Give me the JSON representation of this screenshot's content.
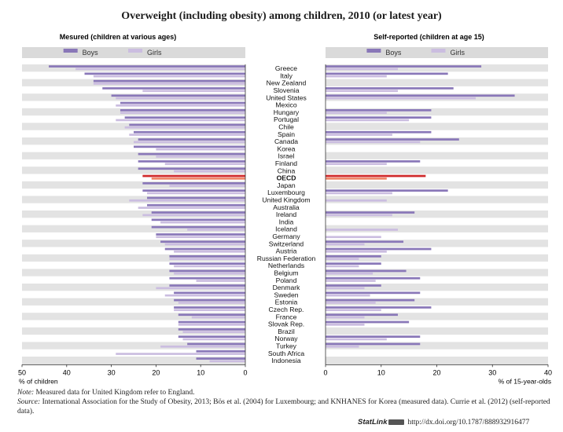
{
  "chart_data": {
    "type": "bar",
    "title": "Overweight (including obesity) among children, 2010 (or latest year)",
    "categories": [
      "Greece",
      "Italy",
      "New Zealand",
      "Slovenia",
      "United States",
      "Mexico",
      "Hungary",
      "Portugal",
      "Chile",
      "Spain",
      "Canada",
      "Korea",
      "Israel",
      "Finland",
      "China",
      "OECD",
      "Japan",
      "Luxembourg",
      "United Kingdom",
      "Australia",
      "Ireland",
      "India",
      "Iceland",
      "Germany",
      "Switzerland",
      "Austria",
      "Russian Federation",
      "Netherlands",
      "Belgium",
      "Poland",
      "Denmark",
      "Sweden",
      "Estonia",
      "Czech Rep.",
      "France",
      "Slovak Rep.",
      "Brazil",
      "Norway",
      "Turkey",
      "South Africa",
      "Indonesia"
    ],
    "highlight": "OECD",
    "left_panel": {
      "subtitle": "Mesured (children at various ages)",
      "xlabel": "% of children",
      "xlim": [
        0,
        50
      ],
      "xticks": [
        50,
        40,
        30,
        20,
        10,
        0
      ],
      "direction": "reversed",
      "series": [
        {
          "name": "Boys",
          "values": [
            44,
            36,
            34,
            32,
            30,
            28,
            28,
            27,
            26,
            25,
            24,
            25,
            24,
            24,
            24,
            23,
            23,
            23,
            22,
            22,
            21,
            21,
            21,
            20,
            19,
            18,
            17,
            17,
            17,
            17,
            17,
            16,
            16,
            16,
            15,
            15,
            15,
            15,
            13,
            11,
            11
          ]
        },
        {
          "name": "Girls",
          "values": [
            38,
            34,
            34,
            23,
            29,
            29,
            28,
            29,
            27,
            26,
            25,
            20,
            20,
            18,
            16,
            21,
            17,
            22,
            26,
            24,
            23,
            19,
            13,
            20,
            18,
            16,
            17,
            16,
            16,
            11,
            20,
            18,
            15,
            16,
            12,
            15,
            14,
            14,
            19,
            29,
            8
          ]
        }
      ]
    },
    "right_panel": {
      "subtitle": "Self-reported (children at age 15)",
      "xlabel": "% of 15-year-olds",
      "xlim": [
        0,
        40
      ],
      "xticks": [
        0,
        10,
        20,
        30,
        40
      ],
      "series": [
        {
          "name": "Boys",
          "values": [
            28,
            22,
            null,
            23,
            34,
            null,
            19,
            19,
            null,
            19,
            24,
            null,
            null,
            17,
            null,
            18,
            null,
            22,
            null,
            null,
            16,
            null,
            null,
            null,
            14,
            19,
            10,
            10,
            14.5,
            17,
            10,
            17,
            16,
            19,
            13,
            15,
            null,
            17,
            17,
            null,
            null
          ]
        },
        {
          "name": "Girls",
          "values": [
            13,
            11,
            null,
            13,
            27,
            null,
            11,
            15,
            null,
            12,
            17,
            null,
            null,
            11,
            null,
            11,
            null,
            12,
            11,
            null,
            12,
            null,
            13,
            10,
            7,
            11,
            6,
            6,
            8.5,
            9,
            7,
            8,
            9,
            10,
            7,
            7,
            null,
            11,
            6,
            null,
            null
          ]
        }
      ]
    },
    "colors": {
      "boys": "#8977b8",
      "girls": "#cbbde0",
      "oecd_boys": "#d0292a",
      "oecd_girls": "#f0876a",
      "band": "#e3e3e3"
    }
  },
  "notes": {
    "note_label": "Note:",
    "note_text": "Measured data for United Kingdom refer to England.",
    "source_label": "Source:",
    "source_text": "International Association for the Study of Obesity, 2013; Bös et al. (2004) for Luxembourg; and KNHANES for Korea (measured data). Currie et al. (2012) (self-reported data)."
  },
  "statlink": {
    "label": "StatLink",
    "url": "http://dx.doi.org/10.1787/888932916477"
  }
}
